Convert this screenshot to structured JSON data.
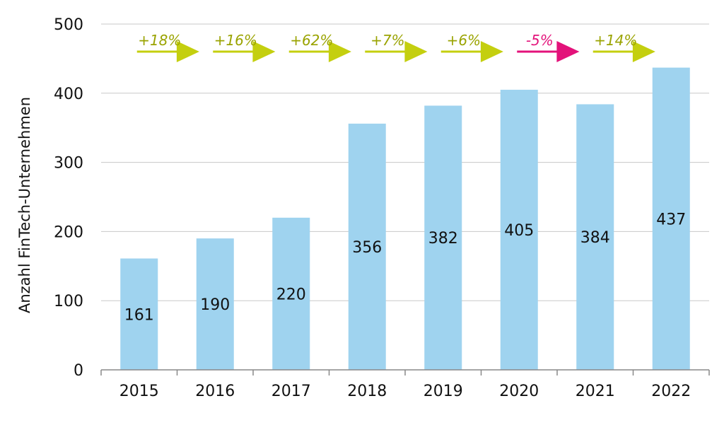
{
  "chart_data": {
    "type": "bar",
    "categories": [
      "2015",
      "2016",
      "2017",
      "2018",
      "2019",
      "2020",
      "2021",
      "2022"
    ],
    "values": [
      161,
      190,
      220,
      356,
      382,
      405,
      384,
      437
    ],
    "data_labels": [
      "161",
      "190",
      "220",
      "356",
      "382",
      "405",
      "384",
      "437"
    ],
    "title": "",
    "xlabel": "",
    "ylabel": "Anzahl FinTech-Unternehmen",
    "ylim": [
      0,
      500
    ],
    "yticks": [
      0,
      100,
      200,
      300,
      400,
      500
    ],
    "ytick_labels": [
      "0",
      "100",
      "200",
      "300",
      "400",
      "500"
    ],
    "grid": true,
    "legend": "none",
    "growth_annotations": [
      {
        "label": "+18%",
        "direction": "up"
      },
      {
        "label": "+16%",
        "direction": "up"
      },
      {
        "label": "+62%",
        "direction": "up"
      },
      {
        "label": "+7%",
        "direction": "up"
      },
      {
        "label": "+6%",
        "direction": "up"
      },
      {
        "label": "-5%",
        "direction": "down"
      },
      {
        "label": "+14%",
        "direction": "up"
      }
    ],
    "colors": {
      "bar": "#9fd3ef",
      "growth_up": "#c4cf0f",
      "growth_up_text": "#9aa300",
      "growth_down": "#e3127a",
      "growth_down_text": "#e3127a"
    }
  }
}
